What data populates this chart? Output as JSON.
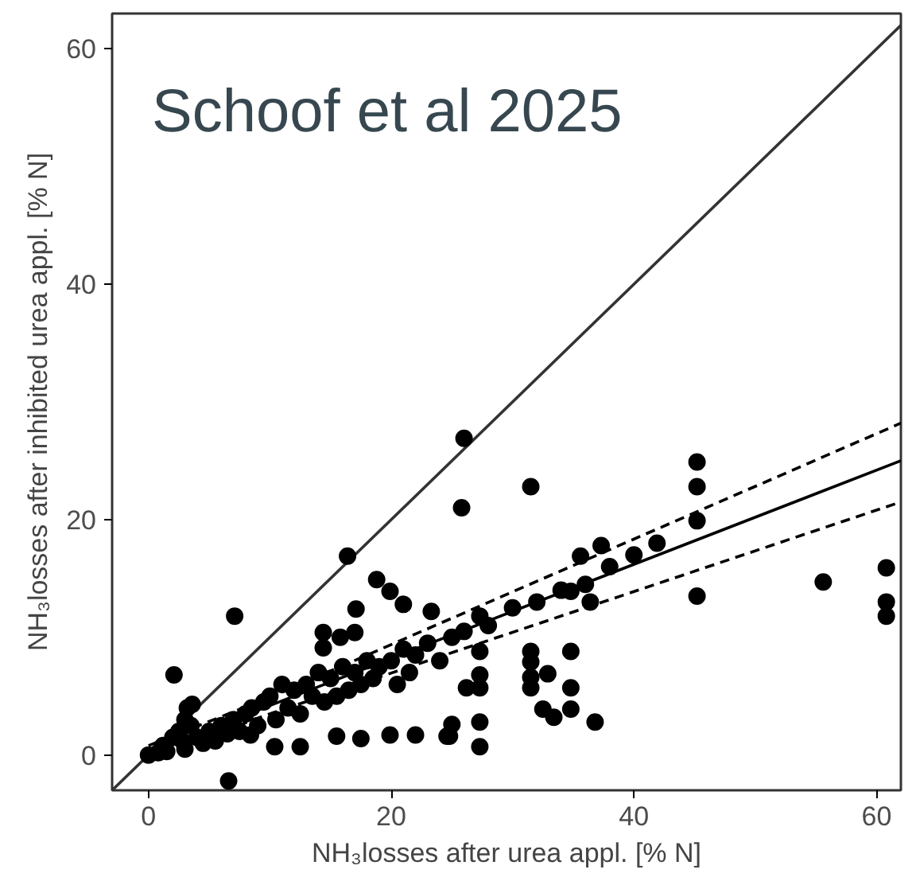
{
  "chart_data": {
    "type": "scatter",
    "xlabel": "NH₃losses after urea appl. [% N]",
    "ylabel": "NH₃losses after inhibited urea appl. [% N]",
    "annotations": [
      "Schoof et al 2025"
    ],
    "xlim": [
      -3,
      62
    ],
    "ylim": [
      -3,
      63
    ],
    "xticks": [
      0,
      20,
      40,
      60
    ],
    "yticks": [
      0,
      20,
      40,
      60
    ],
    "grid": false,
    "series": [
      {
        "type": "line",
        "color": "#333333",
        "line_style": "solid",
        "x": [
          -3,
          62
        ],
        "values": [
          -3,
          62
        ]
      },
      {
        "marker": "circle",
        "color": "#000000",
        "x": [
          7.1,
          2.1,
          16.4,
          18.8,
          19.9,
          21,
          23.3,
          17.1,
          14.4,
          15.8,
          17,
          14.4,
          26,
          25.8,
          10.4,
          12.5,
          8.4,
          15.5,
          17.5,
          19.9,
          22,
          24.8,
          6.6,
          31.5,
          45.2,
          45.2,
          45.2,
          45.2,
          41.9,
          37.3,
          35.6,
          34.8,
          36.4,
          55.6,
          60.8,
          60.8,
          60.8,
          27.3,
          27.3,
          27.3,
          27.3,
          26.2,
          27.3,
          27.3,
          25,
          24.6,
          31.5,
          31.5,
          31.5,
          31.5,
          32.9,
          34.8,
          34.8,
          32.5,
          33.4,
          34.8,
          36.8,
          3.6,
          0,
          0.8,
          1.2,
          1.5,
          2,
          2.5,
          2.8,
          3,
          3.2,
          3.5,
          3,
          4,
          4.5,
          5,
          5.5,
          6,
          6.5,
          7,
          7.5,
          8,
          8.5,
          9,
          9.5,
          10,
          10.5,
          11,
          11.5,
          12,
          12.5,
          13,
          13.5,
          14,
          14.5,
          15,
          15.5,
          16,
          16.5,
          17,
          17.5,
          18,
          18.5,
          19,
          20,
          20.5,
          21,
          21.5,
          22,
          23,
          24,
          25,
          26,
          28,
          30,
          32,
          34,
          36,
          38,
          40
        ],
        "values": [
          11.8,
          6.8,
          16.9,
          14.9,
          13.9,
          12.8,
          12.2,
          12.4,
          10.4,
          10,
          10.4,
          9.1,
          26.9,
          21,
          0.7,
          0.7,
          1.7,
          1.6,
          1.4,
          1.7,
          1.7,
          1.6,
          -2.2,
          22.8,
          24.9,
          22.8,
          19.9,
          13.5,
          18,
          17.8,
          16.9,
          13.9,
          13,
          14.7,
          15.9,
          13,
          11.8,
          11.8,
          8.8,
          6.8,
          5.7,
          5.7,
          2.8,
          0.7,
          2.6,
          1.6,
          8.8,
          7.9,
          6.6,
          5.7,
          6.9,
          8.8,
          5.7,
          3.9,
          3.2,
          3.9,
          2.8,
          4.3,
          0,
          0.2,
          0.8,
          0.3,
          1.5,
          2,
          1.2,
          3,
          4,
          2.5,
          0.5,
          1.5,
          1,
          2,
          1.2,
          2.5,
          1.8,
          3,
          2,
          3.5,
          4,
          2.5,
          4.5,
          5,
          3,
          6,
          4,
          5.5,
          3.5,
          6,
          5,
          7,
          4.5,
          6.5,
          5,
          7.5,
          5.5,
          7,
          6,
          8,
          6.5,
          7.5,
          8,
          6,
          9,
          7,
          8.5,
          9.5,
          8,
          10,
          10.5,
          11,
          12.5,
          13,
          14,
          14.5,
          16,
          17
        ]
      },
      {
        "type": "line",
        "color": "#000000",
        "line_style": "solid",
        "x": [
          0,
          62
        ],
        "values": [
          0.2,
          25
        ]
      },
      {
        "type": "line",
        "color": "#000000",
        "line_style": "dashed",
        "x": [
          0,
          10,
          62
        ],
        "values": [
          0.8,
          4.9,
          28.2
        ]
      },
      {
        "type": "line",
        "color": "#000000",
        "line_style": "dashed",
        "x": [
          0,
          10,
          62
        ],
        "values": [
          -0.3,
          3.5,
          21.5
        ]
      }
    ]
  }
}
